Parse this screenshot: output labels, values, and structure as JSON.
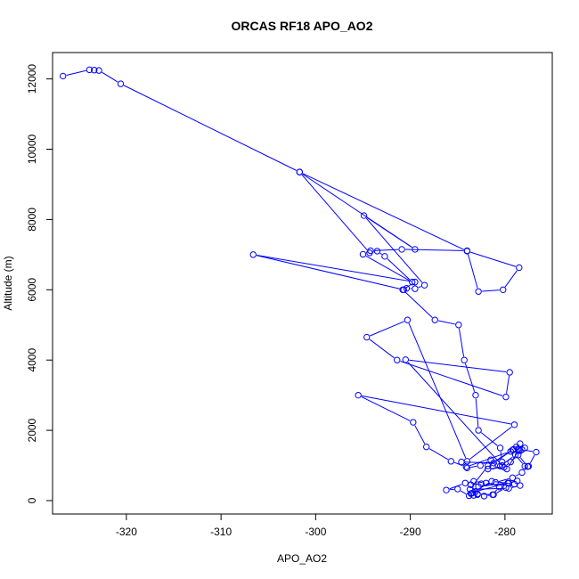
{
  "chart_data": {
    "type": "line",
    "title": "ORCAS RF18 APO_AO2",
    "xlabel": "APO_AO2",
    "ylabel": "Altitude (m)",
    "xlim": [
      -327.8,
      -275.0
    ],
    "ylim": [
      -380,
      12750
    ],
    "xticks": [
      -320,
      -310,
      -300,
      -290,
      -280
    ],
    "yticks": [
      0,
      2000,
      4000,
      6000,
      8000,
      10000,
      12000
    ],
    "grid": false,
    "legend": "none",
    "series_color": "#0000ff",
    "series": [
      {
        "x": [
          -326.7,
          -323.9,
          -323.4,
          -322.9,
          -320.6,
          -301.7,
          -284.0,
          -278.5,
          -280.2,
          -282.8,
          -284.0,
          -290.9,
          -294.2,
          -295.0,
          -289.8,
          -292.7,
          -293.5,
          -294.3,
          -301.7,
          -289.5,
          -294.9,
          -288.5,
          -289.5,
          -290.4,
          -290.7,
          -306.6,
          -289.5,
          -290.8,
          -287.4,
          -284.9,
          -284.3,
          -283.1,
          -282.8,
          -280.5,
          -280.3,
          -280.3,
          -290.5,
          -279.5,
          -279.9,
          -291.4,
          -294.6,
          -290.3,
          -284.0,
          -279.0,
          -295.5,
          -289.7,
          -288.3,
          -285.7,
          -284.1,
          -279.4,
          -278.4,
          -278.6,
          -278.8,
          -278.4,
          -279.2,
          -281.2,
          -284.6,
          -284.0,
          -282.6,
          -281.5,
          -280.5,
          -278.9,
          -277.9,
          -277.5,
          -276.7,
          -278.2,
          -279.1,
          -281.8,
          -283.7,
          -279.6,
          -278.4,
          -278.7,
          -279.6,
          -280.6,
          -281.3,
          -282.9,
          -283.8,
          -285.0,
          -286.2,
          -284.2,
          -283.3,
          -282.0,
          -282.5,
          -283.6,
          -282.9,
          -282.2,
          -281.2,
          -279.9,
          -279.0,
          -281.4,
          -283.6,
          -283.3,
          -283.5,
          -283.1,
          -279.7,
          -282.8,
          -281.0,
          -279.2,
          -278.2,
          -277.6,
          -278.6,
          -279.4,
          -280.1,
          -281.8,
          -281.3,
          -279.8,
          -278.5,
          -277.9
        ]
      }
    ],
    "y": [
      12080,
      12260,
      12250,
      12240,
      11860,
      9350,
      7100,
      6630,
      6000,
      5950,
      7110,
      7150,
      7110,
      7010,
      6220,
      6950,
      7100,
      7050,
      9350,
      7150,
      8110,
      6130,
      6030,
      6040,
      6000,
      7000,
      6220,
      6000,
      5140,
      5000,
      4000,
      3000,
      2000,
      1500,
      1100,
      1000,
      4010,
      3650,
      2950,
      4000,
      4650,
      5140,
      1120,
      2160,
      3000,
      2230,
      1530,
      1120,
      960,
      1400,
      1420,
      1470,
      1530,
      1620,
      1440,
      1070,
      1100,
      930,
      1000,
      1160,
      980,
      1300,
      980,
      980,
      1380,
      1450,
      1460,
      990,
      320,
      350,
      430,
      560,
      500,
      390,
      170,
      190,
      140,
      330,
      300,
      500,
      550,
      500,
      480,
      450,
      170,
      130,
      170,
      370,
      470,
      550,
      200,
      150,
      210,
      260,
      500,
      400,
      520,
      650,
      800,
      970,
      1300,
      1100,
      950,
      900,
      980,
      900,
      1450,
      1500
    ]
  }
}
